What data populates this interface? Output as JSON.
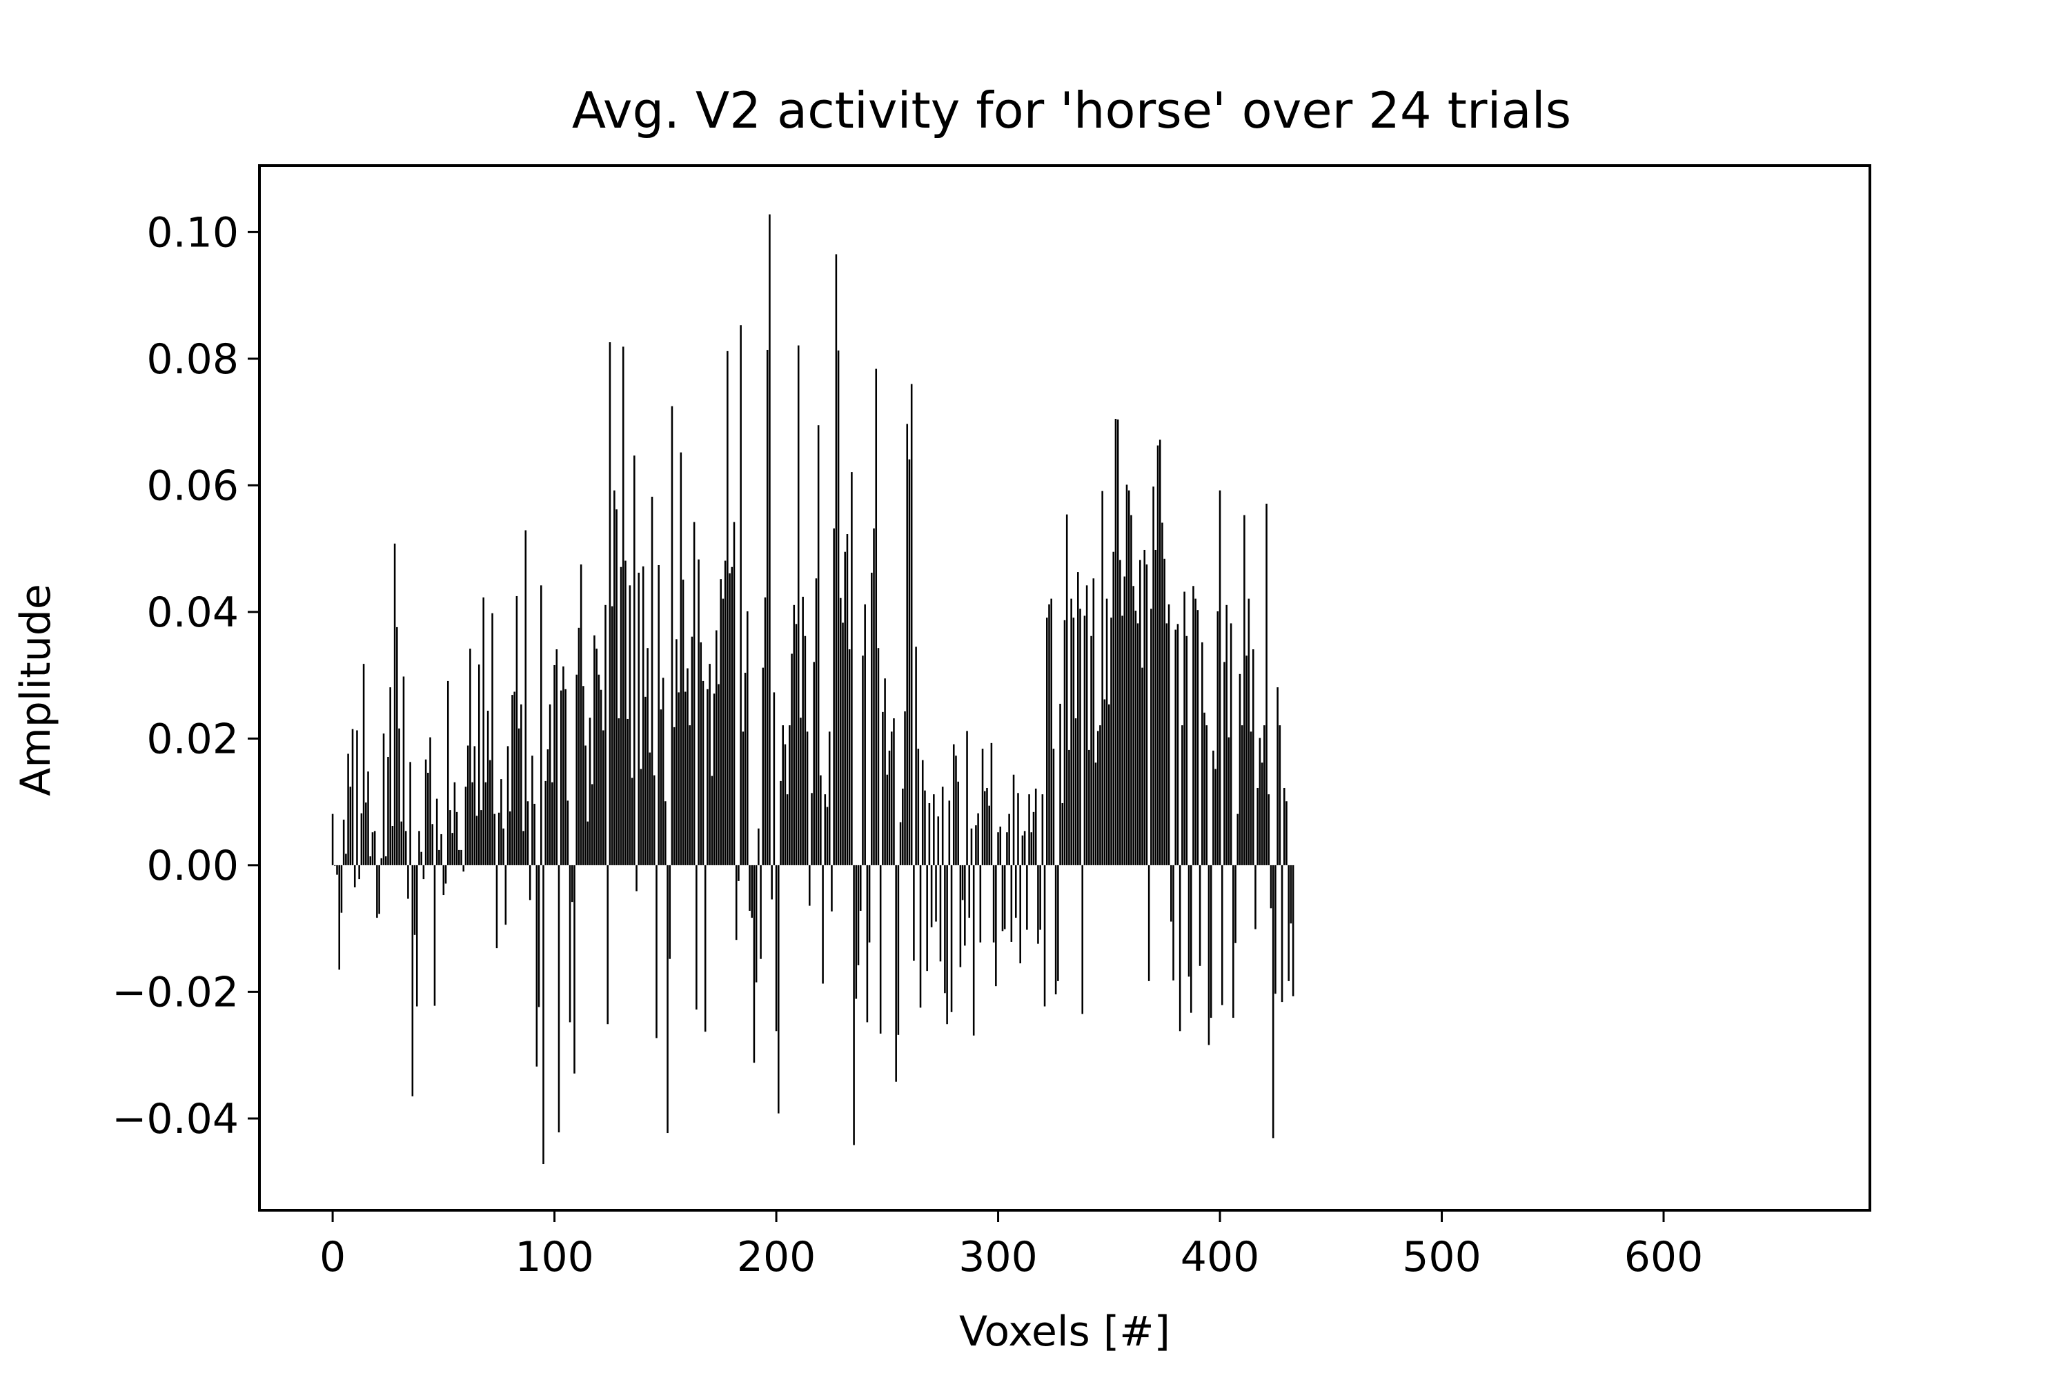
{
  "chart_data": {
    "type": "bar",
    "title": "Avg. V2 activity for 'horse' over 24 trials",
    "xlabel": "Voxels [#]",
    "ylabel": "Amplitude",
    "xlim": [
      -33,
      693
    ],
    "ylim": [
      -0.0545,
      0.1105
    ],
    "xticks": [
      0,
      100,
      200,
      300,
      400,
      500,
      600
    ],
    "xtick_labels": [
      "0",
      "100",
      "200",
      "300",
      "400",
      "500",
      "600"
    ],
    "yticks": [
      -0.04,
      -0.02,
      0.0,
      0.02,
      0.04,
      0.06,
      0.08,
      0.1
    ],
    "ytick_labels": [
      "−0.04",
      "−0.02",
      "0.00",
      "0.02",
      "0.04",
      "0.06",
      "0.08",
      "0.10"
    ],
    "grid": false,
    "bar_color": "#000000",
    "x_start": 0,
    "values": [
      0.0081,
      0.0,
      -0.0015,
      -0.0165,
      -0.0075,
      0.0072,
      0.0018,
      0.0176,
      0.0124,
      0.0215,
      -0.0035,
      0.0213,
      -0.0022,
      0.0082,
      0.0318,
      0.0099,
      0.0148,
      0.0014,
      0.0052,
      0.0054,
      -0.0083,
      -0.0077,
      0.0011,
      0.0208,
      0.0014,
      0.0171,
      0.0281,
      0.0062,
      0.0508,
      0.0376,
      0.0216,
      0.0069,
      0.0298,
      0.0054,
      -0.0053,
      0.0163,
      -0.0365,
      -0.011,
      -0.0223,
      0.0054,
      0.0021,
      -0.0022,
      0.0167,
      0.0146,
      0.0202,
      0.0065,
      -0.0222,
      0.0105,
      0.0024,
      0.0049,
      -0.0047,
      -0.0029,
      0.0291,
      0.0087,
      0.0051,
      0.0131,
      0.0084,
      0.0024,
      0.0024,
      -0.001,
      0.0124,
      0.0189,
      0.0342,
      0.0131,
      0.0188,
      0.0078,
      0.0317,
      0.0087,
      0.0423,
      0.0131,
      0.0244,
      0.0166,
      0.0398,
      0.0081,
      -0.0131,
      0.0083,
      0.0136,
      0.0058,
      -0.0094,
      0.0188,
      0.0085,
      0.0269,
      0.0274,
      0.0425,
      0.0216,
      0.0254,
      0.0054,
      0.0529,
      0.0101,
      -0.0055,
      0.0173,
      0.0097,
      -0.0318,
      -0.0224,
      0.0442,
      -0.0472,
      0.0133,
      0.0183,
      0.0254,
      0.0131,
      0.0316,
      0.0341,
      -0.0422,
      0.0276,
      0.0314,
      0.0278,
      0.0102,
      -0.0248,
      -0.0058,
      -0.0329,
      0.0301,
      0.0375,
      0.0475,
      0.0283,
      0.0189,
      0.0069,
      0.0233,
      0.0128,
      0.0363,
      0.0342,
      0.0301,
      0.0277,
      0.0213,
      0.0411,
      -0.0251,
      0.0826,
      0.0409,
      0.0592,
      0.0562,
      0.0232,
      0.0471,
      0.0819,
      0.0481,
      0.0231,
      0.0442,
      0.0138,
      0.0647,
      -0.0041,
      0.0462,
      0.0152,
      0.0472,
      0.0266,
      0.0343,
      0.0178,
      0.0582,
      0.0142,
      -0.0273,
      0.0474,
      0.0246,
      0.0296,
      0.0101,
      -0.0423,
      -0.0148,
      0.0725,
      0.0218,
      0.0357,
      0.0273,
      0.0652,
      0.0451,
      0.0274,
      0.0311,
      0.0221,
      0.0361,
      0.0542,
      -0.0228,
      0.0483,
      0.0352,
      0.0291,
      -0.0263,
      0.0278,
      0.0318,
      0.0141,
      0.0271,
      0.0371,
      0.0286,
      0.0452,
      0.0421,
      0.0481,
      0.0812,
      0.0461,
      0.0471,
      0.0542,
      -0.0118,
      -0.0025,
      0.0853,
      0.0211,
      0.0304,
      0.0401,
      -0.0072,
      -0.0083,
      -0.0312,
      -0.0185,
      0.0058,
      -0.0148,
      0.0312,
      0.0423,
      0.0814,
      0.1028,
      -0.0054,
      0.0273,
      -0.0262,
      -0.0392,
      0.0133,
      0.0221,
      0.0191,
      0.0112,
      0.0221,
      0.0334,
      0.0411,
      0.0381,
      0.0821,
      0.0233,
      0.0424,
      0.0362,
      0.0211,
      -0.0064,
      0.0114,
      0.0321,
      0.0453,
      0.0695,
      0.0142,
      -0.0187,
      0.0112,
      0.0092,
      0.0211,
      -0.0073,
      0.0532,
      0.0965,
      0.0813,
      0.0422,
      0.0383,
      0.0495,
      0.0523,
      0.0341,
      0.0621,
      -0.0442,
      -0.0211,
      -0.0158,
      -0.0072,
      0.0331,
      0.0412,
      -0.0248,
      -0.0122,
      0.0462,
      0.0532,
      0.0784,
      0.0343,
      -0.0266,
      0.0242,
      0.0295,
      0.0143,
      0.0181,
      0.0211,
      0.0232,
      -0.0342,
      -0.0268,
      0.0068,
      0.0121,
      0.0243,
      0.0697,
      0.0641,
      0.076,
      -0.0151,
      0.0345,
      0.0184,
      -0.0225,
      0.0166,
      0.0118,
      -0.0167,
      0.0098,
      -0.0098,
      0.0112,
      -0.0089,
      0.0077,
      -0.0152,
      0.0124,
      -0.0202,
      -0.0251,
      0.0102,
      -0.0232,
      0.0191,
      0.0173,
      0.0132,
      -0.0161,
      -0.0055,
      -0.0127,
      0.0212,
      -0.0083,
      0.0058,
      -0.0269,
      0.0063,
      0.0082,
      -0.0122,
      0.0184,
      0.0117,
      0.0122,
      0.0094,
      0.0193,
      -0.0122,
      -0.0191,
      0.0052,
      0.0061,
      -0.0104,
      -0.0101,
      0.0052,
      0.0081,
      -0.0121,
      0.0143,
      -0.0083,
      0.0114,
      -0.0155,
      0.0047,
      0.0054,
      -0.0102,
      0.0112,
      0.0052,
      0.0084,
      0.0121,
      -0.0124,
      -0.0102,
      0.0112,
      -0.0223,
      0.0391,
      0.0412,
      0.0421,
      0.0184,
      -0.0204,
      -0.0183,
      0.0255,
      0.0098,
      0.0387,
      0.0554,
      0.0182,
      0.0421,
      0.0391,
      0.0232,
      0.0463,
      0.0405,
      -0.0235,
      0.0394,
      0.0442,
      0.0182,
      0.0362,
      0.0453,
      0.0162,
      0.0212,
      0.0221,
      0.0591,
      0.0262,
      0.0421,
      0.0254,
      0.0391,
      0.0495,
      0.0705,
      0.0704,
      0.0482,
      0.0394,
      0.0456,
      0.0601,
      0.0592,
      0.0553,
      0.0441,
      0.0402,
      0.0382,
      0.0482,
      0.0312,
      0.0498,
      0.0475,
      -0.0183,
      0.0405,
      0.0598,
      0.0498,
      0.0663,
      0.0672,
      0.0541,
      0.0484,
      0.0382,
      0.0412,
      -0.0089,
      -0.0182,
      0.0372,
      0.0381,
      -0.0262,
      0.0221,
      0.0432,
      0.0362,
      -0.0176,
      -0.0233,
      0.0441,
      0.0421,
      0.0403,
      -0.0159,
      0.0352,
      0.0241,
      0.0221,
      -0.0284,
      -0.0241,
      0.0181,
      0.0152,
      0.0401,
      0.0592,
      -0.0221,
      0.0321,
      0.0411,
      0.0202,
      0.0382,
      -0.0241,
      -0.0123,
      0.0081,
      0.0302,
      0.0221,
      0.0553,
      0.0331,
      0.0421,
      0.0211,
      0.0341,
      -0.0101,
      0.0122,
      0.0201,
      0.0162,
      0.0221,
      0.0571,
      0.0112,
      -0.0068,
      -0.0431,
      -0.0203,
      0.0281,
      0.0221,
      -0.0216,
      0.0122,
      0.0101,
      -0.0183,
      -0.0092,
      -0.0207
    ]
  }
}
